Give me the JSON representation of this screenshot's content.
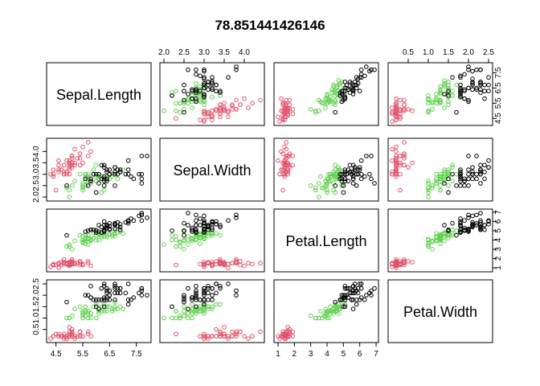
{
  "chart_data": {
    "type": "scatter",
    "subtype": "scatterplot-matrix",
    "title": "78.851441426146",
    "variables": [
      "Sepal.Length",
      "Sepal.Width",
      "Petal.Length",
      "Petal.Width"
    ],
    "axis_ranges": {
      "Sepal.Length": [
        4.3,
        7.9
      ],
      "Sepal.Width": [
        2.0,
        4.4
      ],
      "Petal.Length": [
        1.0,
        6.9
      ],
      "Petal.Width": [
        0.1,
        2.5
      ]
    },
    "ticks": {
      "Sepal.Length": [
        "4.5",
        "5.5",
        "6.5",
        "7.5"
      ],
      "Sepal.Width": [
        "2.0",
        "2.5",
        "3.0",
        "3.5",
        "4.0"
      ],
      "Petal.Length": [
        "1",
        "2",
        "3",
        "4",
        "5",
        "6",
        "7"
      ],
      "Petal.Width": [
        "0.5",
        "1.0",
        "1.5",
        "2.0",
        "2.5"
      ]
    },
    "grid": false,
    "legend": "none",
    "group_colors": [
      "#DF536B",
      "#61D04F",
      "#000000"
    ],
    "series": [
      {
        "name": "",
        "color": "#DF536B",
        "values": [
          [
            5.1,
            3.5,
            1.4,
            0.2
          ],
          [
            4.9,
            3.0,
            1.4,
            0.2
          ],
          [
            4.7,
            3.2,
            1.3,
            0.2
          ],
          [
            4.6,
            3.1,
            1.5,
            0.2
          ],
          [
            5.0,
            3.6,
            1.4,
            0.2
          ],
          [
            5.4,
            3.9,
            1.7,
            0.4
          ],
          [
            4.6,
            3.4,
            1.4,
            0.3
          ],
          [
            5.0,
            3.4,
            1.5,
            0.2
          ],
          [
            4.4,
            2.9,
            1.4,
            0.2
          ],
          [
            4.9,
            3.1,
            1.5,
            0.1
          ],
          [
            5.4,
            3.7,
            1.5,
            0.2
          ],
          [
            4.8,
            3.4,
            1.6,
            0.2
          ],
          [
            4.8,
            3.0,
            1.4,
            0.1
          ],
          [
            4.3,
            3.0,
            1.1,
            0.1
          ],
          [
            5.8,
            4.0,
            1.2,
            0.2
          ],
          [
            5.7,
            4.4,
            1.5,
            0.4
          ],
          [
            5.4,
            3.9,
            1.3,
            0.4
          ],
          [
            5.1,
            3.5,
            1.4,
            0.3
          ],
          [
            5.7,
            3.8,
            1.7,
            0.3
          ],
          [
            5.1,
            3.8,
            1.5,
            0.3
          ],
          [
            5.4,
            3.4,
            1.7,
            0.2
          ],
          [
            5.1,
            3.7,
            1.5,
            0.4
          ],
          [
            4.6,
            3.6,
            1.0,
            0.2
          ],
          [
            5.1,
            3.3,
            1.7,
            0.5
          ],
          [
            4.8,
            3.4,
            1.9,
            0.2
          ],
          [
            5.0,
            3.0,
            1.6,
            0.2
          ],
          [
            5.0,
            3.4,
            1.6,
            0.4
          ],
          [
            5.2,
            3.5,
            1.5,
            0.2
          ],
          [
            5.2,
            3.4,
            1.4,
            0.2
          ],
          [
            4.7,
            3.2,
            1.6,
            0.2
          ],
          [
            4.8,
            3.1,
            1.6,
            0.2
          ],
          [
            5.4,
            3.4,
            1.5,
            0.4
          ],
          [
            5.2,
            4.1,
            1.5,
            0.1
          ],
          [
            5.5,
            4.2,
            1.4,
            0.2
          ],
          [
            4.9,
            3.1,
            1.5,
            0.2
          ],
          [
            5.0,
            3.2,
            1.2,
            0.2
          ],
          [
            5.5,
            3.5,
            1.3,
            0.2
          ],
          [
            4.9,
            3.6,
            1.4,
            0.1
          ],
          [
            4.4,
            3.0,
            1.3,
            0.2
          ],
          [
            5.1,
            3.4,
            1.5,
            0.2
          ],
          [
            5.0,
            3.5,
            1.3,
            0.3
          ],
          [
            4.5,
            2.3,
            1.3,
            0.3
          ],
          [
            4.4,
            3.2,
            1.3,
            0.2
          ],
          [
            5.0,
            3.5,
            1.6,
            0.6
          ],
          [
            5.1,
            3.8,
            1.9,
            0.4
          ],
          [
            4.8,
            3.0,
            1.4,
            0.3
          ],
          [
            5.1,
            3.8,
            1.6,
            0.2
          ],
          [
            4.6,
            3.2,
            1.4,
            0.2
          ],
          [
            5.3,
            3.7,
            1.5,
            0.2
          ],
          [
            5.0,
            3.3,
            1.4,
            0.2
          ]
        ]
      },
      {
        "name": "",
        "color": "#61D04F",
        "values": [
          [
            7.0,
            3.2,
            4.7,
            1.4
          ],
          [
            6.4,
            3.2,
            4.5,
            1.5
          ],
          [
            6.9,
            3.1,
            4.9,
            1.5
          ],
          [
            5.5,
            2.3,
            4.0,
            1.3
          ],
          [
            6.5,
            2.8,
            4.6,
            1.5
          ],
          [
            5.7,
            2.8,
            4.5,
            1.3
          ],
          [
            6.3,
            3.3,
            4.7,
            1.6
          ],
          [
            4.9,
            2.4,
            3.3,
            1.0
          ],
          [
            6.6,
            2.9,
            4.6,
            1.3
          ],
          [
            5.2,
            2.7,
            3.9,
            1.4
          ],
          [
            5.0,
            2.0,
            3.5,
            1.0
          ],
          [
            5.9,
            3.0,
            4.2,
            1.5
          ],
          [
            6.0,
            2.2,
            4.0,
            1.0
          ],
          [
            6.1,
            2.9,
            4.7,
            1.4
          ],
          [
            5.6,
            2.9,
            3.6,
            1.3
          ],
          [
            6.7,
            3.1,
            4.4,
            1.4
          ],
          [
            5.6,
            3.0,
            4.5,
            1.5
          ],
          [
            5.8,
            2.7,
            4.1,
            1.0
          ],
          [
            6.2,
            2.2,
            4.5,
            1.5
          ],
          [
            5.6,
            2.5,
            3.9,
            1.1
          ],
          [
            5.9,
            3.2,
            4.8,
            1.8
          ],
          [
            6.1,
            2.8,
            4.0,
            1.3
          ],
          [
            6.3,
            2.5,
            4.9,
            1.5
          ],
          [
            6.1,
            2.8,
            4.7,
            1.2
          ],
          [
            6.4,
            2.9,
            4.3,
            1.3
          ],
          [
            6.6,
            3.0,
            4.4,
            1.4
          ],
          [
            6.8,
            2.8,
            4.8,
            1.4
          ],
          [
            6.7,
            3.0,
            5.0,
            1.7
          ],
          [
            6.0,
            2.9,
            4.5,
            1.5
          ],
          [
            5.7,
            2.6,
            3.5,
            1.0
          ],
          [
            5.5,
            2.4,
            3.8,
            1.1
          ],
          [
            5.5,
            2.4,
            3.7,
            1.0
          ],
          [
            5.8,
            2.7,
            3.9,
            1.2
          ],
          [
            6.0,
            2.7,
            5.1,
            1.6
          ],
          [
            5.4,
            3.0,
            4.5,
            1.5
          ],
          [
            6.0,
            3.4,
            4.5,
            1.6
          ],
          [
            6.7,
            3.1,
            4.7,
            1.5
          ],
          [
            6.3,
            2.3,
            4.4,
            1.3
          ],
          [
            5.6,
            3.0,
            4.1,
            1.3
          ],
          [
            5.5,
            2.5,
            4.0,
            1.3
          ],
          [
            5.5,
            2.6,
            4.4,
            1.2
          ],
          [
            6.1,
            3.0,
            4.6,
            1.4
          ],
          [
            5.8,
            2.6,
            4.0,
            1.2
          ],
          [
            5.0,
            2.3,
            3.3,
            1.0
          ],
          [
            5.6,
            2.7,
            4.2,
            1.3
          ],
          [
            5.7,
            3.0,
            4.2,
            1.2
          ],
          [
            5.7,
            2.9,
            4.2,
            1.3
          ],
          [
            6.2,
            2.9,
            4.3,
            1.3
          ],
          [
            5.1,
            2.5,
            3.0,
            1.1
          ],
          [
            5.7,
            2.8,
            4.1,
            1.3
          ]
        ]
      },
      {
        "name": "",
        "color": "#000000",
        "values": [
          [
            6.3,
            3.3,
            6.0,
            2.5
          ],
          [
            5.8,
            2.7,
            5.1,
            1.9
          ],
          [
            7.1,
            3.0,
            5.9,
            2.1
          ],
          [
            6.3,
            2.9,
            5.6,
            1.8
          ],
          [
            6.5,
            3.0,
            5.8,
            2.2
          ],
          [
            7.6,
            3.0,
            6.6,
            2.1
          ],
          [
            4.9,
            2.5,
            4.5,
            1.7
          ],
          [
            7.3,
            2.9,
            6.3,
            1.8
          ],
          [
            6.7,
            2.5,
            5.8,
            1.8
          ],
          [
            7.2,
            3.6,
            6.1,
            2.5
          ],
          [
            6.5,
            3.2,
            5.1,
            2.0
          ],
          [
            6.4,
            2.7,
            5.3,
            1.9
          ],
          [
            6.8,
            3.0,
            5.5,
            2.1
          ],
          [
            5.7,
            2.5,
            5.0,
            2.0
          ],
          [
            5.8,
            2.8,
            5.1,
            2.4
          ],
          [
            6.4,
            3.2,
            5.3,
            2.3
          ],
          [
            6.5,
            3.0,
            5.5,
            1.8
          ],
          [
            7.7,
            3.8,
            6.7,
            2.2
          ],
          [
            7.7,
            2.6,
            6.9,
            2.3
          ],
          [
            6.0,
            2.2,
            5.0,
            1.5
          ],
          [
            6.9,
            3.2,
            5.7,
            2.3
          ],
          [
            5.6,
            2.8,
            4.9,
            2.0
          ],
          [
            7.7,
            2.8,
            6.7,
            2.0
          ],
          [
            6.3,
            2.7,
            4.9,
            1.8
          ],
          [
            6.7,
            3.3,
            5.7,
            2.1
          ],
          [
            7.2,
            3.2,
            6.0,
            1.8
          ],
          [
            6.2,
            2.8,
            4.8,
            1.8
          ],
          [
            6.1,
            3.0,
            4.9,
            1.8
          ],
          [
            6.4,
            2.8,
            5.6,
            2.1
          ],
          [
            7.2,
            3.0,
            5.8,
            1.6
          ],
          [
            7.4,
            2.8,
            6.1,
            1.9
          ],
          [
            7.9,
            3.8,
            6.4,
            2.0
          ],
          [
            6.4,
            2.8,
            5.6,
            2.2
          ],
          [
            6.3,
            2.8,
            5.1,
            1.5
          ],
          [
            6.1,
            2.6,
            5.6,
            1.4
          ],
          [
            7.7,
            3.0,
            6.1,
            2.3
          ],
          [
            6.3,
            3.4,
            5.6,
            2.4
          ],
          [
            6.4,
            3.1,
            5.5,
            1.8
          ],
          [
            6.0,
            3.0,
            4.8,
            1.8
          ],
          [
            6.9,
            3.1,
            5.4,
            2.1
          ],
          [
            6.7,
            3.1,
            5.6,
            2.4
          ],
          [
            6.9,
            3.1,
            5.1,
            2.3
          ],
          [
            5.8,
            2.7,
            5.1,
            1.9
          ],
          [
            6.8,
            3.2,
            5.9,
            2.3
          ],
          [
            6.7,
            3.3,
            5.7,
            2.5
          ],
          [
            6.7,
            3.0,
            5.2,
            2.3
          ],
          [
            6.3,
            2.5,
            5.0,
            1.9
          ],
          [
            6.5,
            3.0,
            5.2,
            2.0
          ],
          [
            6.2,
            3.4,
            5.4,
            2.3
          ],
          [
            5.9,
            3.0,
            5.1,
            1.8
          ]
        ]
      }
    ]
  }
}
